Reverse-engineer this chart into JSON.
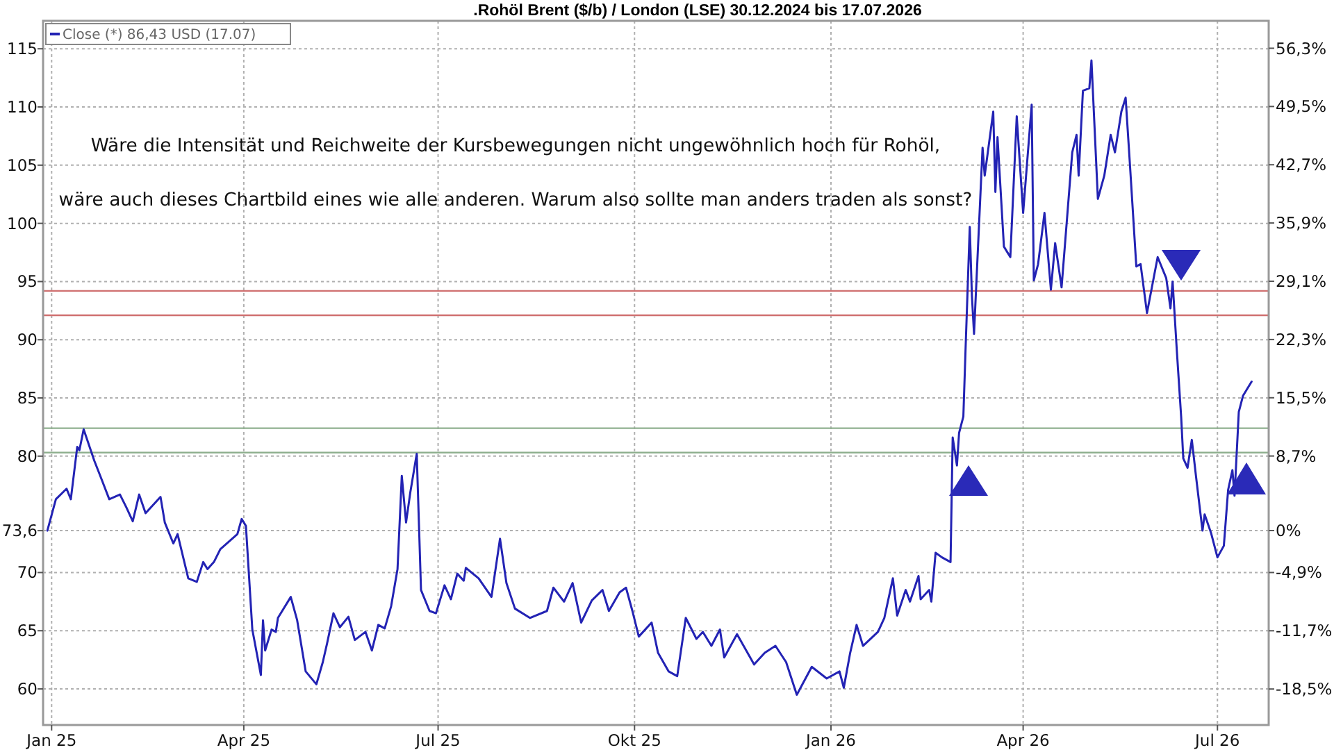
{
  "chart_data": {
    "type": "line",
    "title": ".Rohöl Brent ($/b) / London (LSE) 30.12.2024 bis 17.07.2026",
    "annotations": [
      "Wäre die Intensität und Reichweite der Kursbewegungen nicht ungewöhnlich hoch für Rohöl,",
      "wäre auch dieses Chartbild eines wie alle anderen. Warum also sollte man anders traden als sonst?"
    ],
    "legend": "top left",
    "grid": true,
    "xlim": [
      "2024-12-28",
      "2026-07-25"
    ],
    "xticks": [
      {
        "value": "2025-01-01",
        "label": "Jan 25"
      },
      {
        "value": "2025-04-01",
        "label": "Apr 25"
      },
      {
        "value": "2025-07-01",
        "label": "Jul 25"
      },
      {
        "value": "2025-10-01",
        "label": "Okt 25"
      },
      {
        "value": "2026-01-01",
        "label": "Jan 26"
      },
      {
        "value": "2026-04-01",
        "label": "Apr 26"
      },
      {
        "value": "2026-07-01",
        "label": "Jul 26"
      }
    ],
    "ylim": [
      56.9,
      117.4
    ],
    "yticks": [
      60,
      65,
      70,
      {
        "value": 73.6,
        "label": "73,6"
      },
      80,
      85,
      90,
      95,
      100,
      105,
      110,
      115
    ],
    "y2lim": [
      -22.7,
      59.5
    ],
    "y2ticks": [
      {
        "value": -18.5,
        "label": "-18,5%"
      },
      {
        "value": -11.7,
        "label": "-11,7%"
      },
      {
        "value": -4.9,
        "label": "-4,9%"
      },
      {
        "value": 0,
        "label": "0%"
      },
      {
        "value": 8.7,
        "label": "8,7%"
      },
      {
        "value": 15.5,
        "label": "15,5%"
      },
      {
        "value": 22.3,
        "label": "22,3%"
      },
      {
        "value": 29.1,
        "label": "29,1%"
      },
      {
        "value": 35.9,
        "label": "35,9%"
      },
      {
        "value": 42.7,
        "label": "42,7%"
      },
      {
        "value": 49.5,
        "label": "49,5%"
      },
      {
        "value": 56.3,
        "label": "56,3%"
      }
    ],
    "ref_lines": [
      {
        "axis": "y",
        "value": 82.4,
        "color": "#8fb08f"
      },
      {
        "axis": "y",
        "value": 80.3,
        "color": "#8fb08f"
      },
      {
        "axis": "y",
        "value": 94.2,
        "color": "#d07070"
      },
      {
        "axis": "y",
        "value": 92.1,
        "color": "#d07070"
      }
    ],
    "series": [
      {
        "name": "Close (*) 86,43 USD (17.07)",
        "color": "#2323b4",
        "x": [
          "2024-12-30",
          "2025-01-03",
          "2025-01-08",
          "2025-01-10",
          "2025-01-13",
          "2025-01-14",
          "2025-01-16",
          "2025-01-21",
          "2025-01-24",
          "2025-01-28",
          "2025-02-02",
          "2025-02-05",
          "2025-02-08",
          "2025-02-11",
          "2025-02-14",
          "2025-02-21",
          "2025-02-23",
          "2025-02-27",
          "2025-03-01",
          "2025-03-06",
          "2025-03-10",
          "2025-03-13",
          "2025-03-15",
          "2025-03-18",
          "2025-03-21",
          "2025-03-29",
          "2025-03-31",
          "2025-04-02",
          "2025-04-05",
          "2025-04-09",
          "2025-04-10",
          "2025-04-11",
          "2025-04-14",
          "2025-04-16",
          "2025-04-17",
          "2025-04-23",
          "2025-04-26",
          "2025-04-30",
          "2025-05-05",
          "2025-05-08",
          "2025-05-10",
          "2025-05-13",
          "2025-05-16",
          "2025-05-20",
          "2025-05-23",
          "2025-05-28",
          "2025-05-31",
          "2025-06-03",
          "2025-06-06",
          "2025-06-09",
          "2025-06-12",
          "2025-06-14",
          "2025-06-16",
          "2025-06-18",
          "2025-06-21",
          "2025-06-23",
          "2025-06-27",
          "2025-06-30",
          "2025-07-04",
          "2025-07-07",
          "2025-07-10",
          "2025-07-13",
          "2025-07-14",
          "2025-07-20",
          "2025-07-26",
          "2025-07-30",
          "2025-08-02",
          "2025-08-06",
          "2025-08-13",
          "2025-08-21",
          "2025-08-24",
          "2025-08-29",
          "2025-09-02",
          "2025-09-06",
          "2025-09-11",
          "2025-09-16",
          "2025-09-19",
          "2025-09-24",
          "2025-09-27",
          "2025-09-30",
          "2025-10-03",
          "2025-10-09",
          "2025-10-12",
          "2025-10-17",
          "2025-10-21",
          "2025-10-25",
          "2025-10-30",
          "2025-11-02",
          "2025-11-06",
          "2025-11-10",
          "2025-11-12",
          "2025-11-18",
          "2025-11-26",
          "2025-12-01",
          "2025-12-06",
          "2025-12-11",
          "2025-12-16",
          "2025-12-23",
          "2025-12-30",
          "2026-01-05",
          "2026-01-07",
          "2026-01-10",
          "2026-01-13",
          "2026-01-16",
          "2026-01-23",
          "2026-01-26",
          "2026-01-30",
          "2026-02-01",
          "2026-02-05",
          "2026-02-07",
          "2026-02-11",
          "2026-02-12",
          "2026-02-16",
          "2026-02-17",
          "2026-02-19",
          "2026-02-22",
          "2026-02-26",
          "2026-02-27",
          "2026-03-01",
          "2026-03-02",
          "2026-03-04",
          "2026-03-05",
          "2026-03-07",
          "2026-03-08",
          "2026-03-09",
          "2026-03-13",
          "2026-03-14",
          "2026-03-18",
          "2026-03-19",
          "2026-03-20",
          "2026-03-23",
          "2026-03-26",
          "2026-03-29",
          "2026-04-01",
          "2026-04-05",
          "2026-04-06",
          "2026-04-08",
          "2026-04-11",
          "2026-04-14",
          "2026-04-16",
          "2026-04-19",
          "2026-04-24",
          "2026-04-26",
          "2026-04-27",
          "2026-04-29",
          "2026-05-02",
          "2026-05-03",
          "2026-05-06",
          "2026-05-09",
          "2026-05-12",
          "2026-05-14",
          "2026-05-17",
          "2026-05-19",
          "2026-05-21",
          "2026-05-24",
          "2026-05-26",
          "2026-05-29",
          "2026-06-03",
          "2026-06-07",
          "2026-06-09",
          "2026-06-10",
          "2026-06-12",
          "2026-06-14",
          "2026-06-15",
          "2026-06-17",
          "2026-06-19",
          "2026-06-21",
          "2026-06-24",
          "2026-06-25",
          "2026-06-28",
          "2026-07-01",
          "2026-07-04",
          "2026-07-06",
          "2026-07-08",
          "2026-07-09",
          "2026-07-11",
          "2026-07-13",
          "2026-07-17"
        ],
        "values": [
          73.6,
          76.3,
          77.2,
          76.3,
          80.8,
          80.5,
          82.3,
          79.6,
          78.2,
          76.3,
          76.7,
          75.6,
          74.4,
          76.7,
          75.1,
          76.5,
          74.3,
          72.5,
          73.3,
          69.5,
          69.2,
          70.9,
          70.3,
          70.9,
          72.0,
          73.3,
          74.6,
          74.0,
          65.1,
          61.2,
          65.9,
          63.3,
          65.1,
          64.9,
          66.1,
          67.9,
          65.9,
          61.5,
          60.4,
          62.3,
          63.9,
          66.5,
          65.3,
          66.2,
          64.2,
          64.9,
          63.3,
          65.5,
          65.2,
          67.1,
          70.3,
          78.3,
          74.3,
          76.9,
          80.2,
          68.5,
          66.7,
          66.5,
          68.9,
          67.7,
          69.9,
          69.3,
          70.4,
          69.5,
          67.9,
          72.9,
          69.1,
          66.9,
          66.1,
          66.7,
          68.7,
          67.5,
          69.1,
          65.7,
          67.6,
          68.5,
          66.7,
          68.3,
          68.7,
          66.7,
          64.5,
          65.7,
          63.1,
          61.5,
          61.1,
          66.1,
          64.3,
          64.9,
          63.7,
          65.1,
          62.7,
          64.7,
          62.1,
          63.1,
          63.7,
          62.3,
          59.5,
          61.9,
          60.9,
          61.5,
          60.1,
          63.1,
          65.5,
          63.7,
          64.9,
          66.1,
          69.5,
          66.3,
          68.5,
          67.5,
          69.7,
          67.7,
          68.5,
          67.5,
          71.7,
          71.3,
          70.9,
          81.6,
          79.2,
          82.0,
          83.4,
          89.0,
          99.7,
          93.8,
          90.5,
          106.5,
          104.1,
          109.6,
          102.7,
          107.4,
          98.0,
          97.1,
          109.2,
          100.9,
          110.2,
          95.1,
          96.5,
          100.9,
          94.3,
          98.3,
          94.5,
          106.1,
          107.6,
          104.1,
          111.4,
          111.6,
          114.0,
          102.1,
          104.1,
          107.6,
          106.1,
          109.6,
          110.8,
          105.1,
          96.3,
          96.5,
          92.3,
          97.1,
          95.3,
          92.7,
          95.0,
          89.0,
          83.4,
          79.8,
          79.0,
          81.4,
          78.2,
          73.6,
          75.0,
          73.4,
          71.3,
          72.3,
          77.1,
          78.8,
          76.6,
          83.8,
          85.2,
          86.4
        ]
      }
    ]
  }
}
